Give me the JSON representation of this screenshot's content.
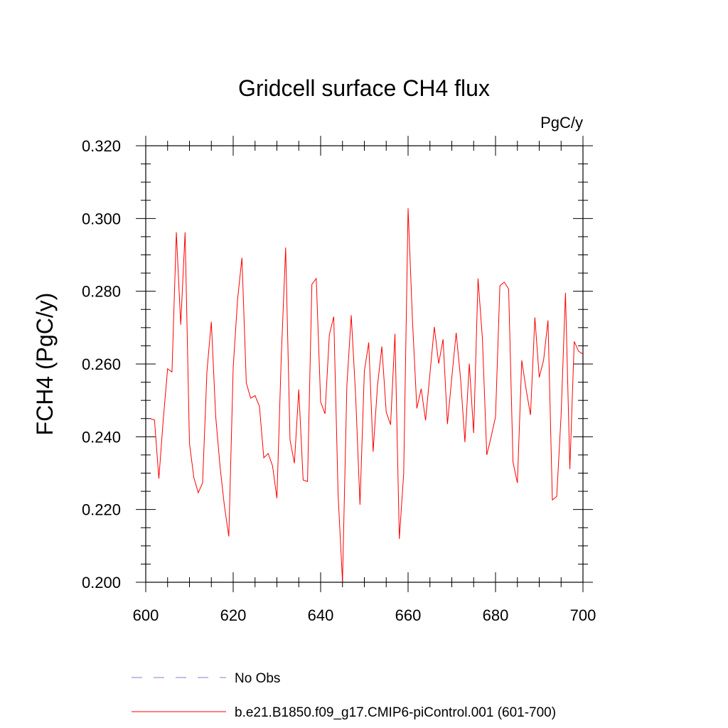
{
  "chart_data": {
    "type": "line",
    "title": "Gridcell surface CH4 flux",
    "units_label": "PgC/y",
    "xlabel": "",
    "ylabel": "FCH4  (PgC/y)",
    "xlim": [
      600,
      700
    ],
    "ylim": [
      0.2,
      0.32
    ],
    "x_ticks": [
      600,
      620,
      640,
      660,
      680,
      700
    ],
    "x_tick_labels": [
      "600",
      "620",
      "640",
      "660",
      "680",
      "700"
    ],
    "y_ticks": [
      0.2,
      0.22,
      0.24,
      0.26,
      0.28,
      0.3,
      0.32
    ],
    "y_tick_labels": [
      "0.200",
      "0.220",
      "0.240",
      "0.260",
      "0.280",
      "0.300",
      "0.320"
    ],
    "grid": false,
    "legend_position": "bottom",
    "series": [
      {
        "name": "b.e21.B1850.f09_g17.CMIP6-piControl.001 (601-700)",
        "color": "#ff0000",
        "style": "solid",
        "x": [
          601,
          602,
          603,
          604,
          605,
          606,
          607,
          608,
          609,
          610,
          611,
          612,
          613,
          614,
          615,
          616,
          617,
          618,
          619,
          620,
          621,
          622,
          623,
          624,
          625,
          626,
          627,
          628,
          629,
          630,
          631,
          632,
          633,
          634,
          635,
          636,
          637,
          638,
          639,
          640,
          641,
          642,
          643,
          644,
          645,
          646,
          647,
          648,
          649,
          650,
          651,
          652,
          653,
          654,
          655,
          656,
          657,
          658,
          659,
          660,
          661,
          662,
          663,
          664,
          665,
          666,
          667,
          668,
          669,
          670,
          671,
          672,
          673,
          674,
          675,
          676,
          677,
          678,
          679,
          680,
          681,
          682,
          683,
          684,
          685,
          686,
          687,
          688,
          689,
          690,
          691,
          692,
          693,
          694,
          695,
          696,
          697,
          698,
          699,
          700
        ],
        "values": [
          0.245,
          0.2446,
          0.2285,
          0.2446,
          0.2587,
          0.2578,
          0.2962,
          0.2708,
          0.2962,
          0.2382,
          0.2288,
          0.2246,
          0.2273,
          0.258,
          0.2716,
          0.2456,
          0.2317,
          0.2209,
          0.2126,
          0.259,
          0.2777,
          0.2892,
          0.2548,
          0.2506,
          0.2513,
          0.2484,
          0.2342,
          0.2354,
          0.232,
          0.2231,
          0.2621,
          0.292,
          0.2391,
          0.2327,
          0.253,
          0.2281,
          0.2277,
          0.2819,
          0.2835,
          0.2496,
          0.2463,
          0.2681,
          0.273,
          0.2239,
          0.2002,
          0.254,
          0.2734,
          0.2515,
          0.2213,
          0.258,
          0.2659,
          0.2359,
          0.254,
          0.2648,
          0.2468,
          0.2433,
          0.2683,
          0.2119,
          0.23,
          0.3028,
          0.2721,
          0.2478,
          0.2532,
          0.2445,
          0.2573,
          0.2702,
          0.2601,
          0.2668,
          0.2435,
          0.2563,
          0.2686,
          0.2561,
          0.2385,
          0.2601,
          0.241,
          0.2835,
          0.267,
          0.235,
          0.24,
          0.2455,
          0.2815,
          0.2825,
          0.2806,
          0.233,
          0.2273,
          0.261,
          0.253,
          0.246,
          0.2728,
          0.2563,
          0.2611,
          0.272,
          0.2226,
          0.2236,
          0.246,
          0.2796,
          0.2311,
          0.2662,
          0.2635,
          0.2627
        ]
      },
      {
        "name": "No Obs",
        "color": "#7f7fcf",
        "style": "dashed",
        "x": [],
        "values": []
      }
    ]
  }
}
